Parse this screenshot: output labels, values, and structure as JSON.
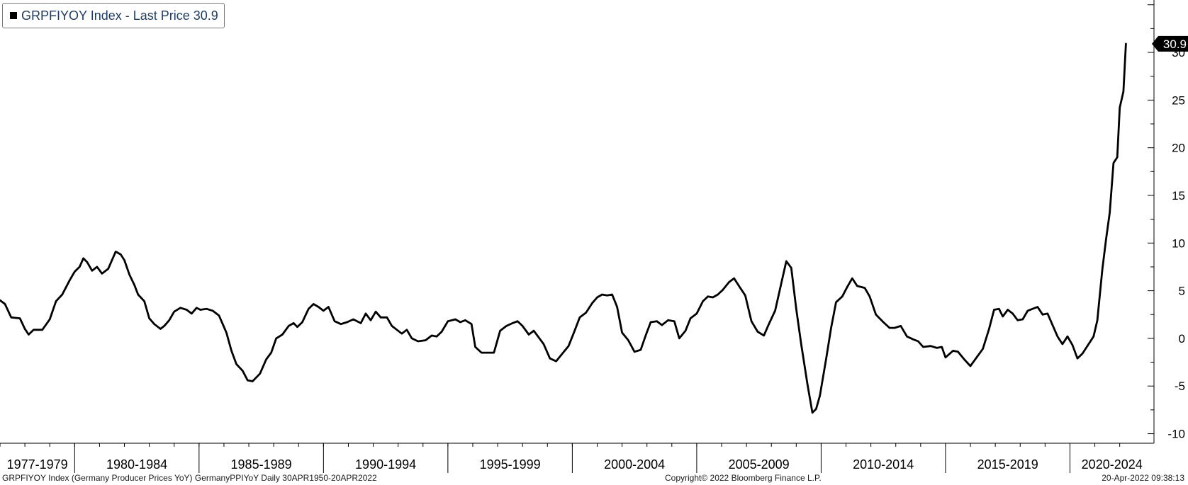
{
  "legend": {
    "label": "GRPFIYOY Index - Last Price 30.9"
  },
  "footer": {
    "left": "GRPFIYOY Index (Germany Producer Prices YoY) GermanyPPIYoY  Daily 30APR1950-20APR2022",
    "center": "Copyright© 2022 Bloomberg Finance L.P.",
    "right": "20-Apr-2022 09:38:13"
  },
  "colors": {
    "line": "#000000",
    "axis": "#000000",
    "background": "#ffffff",
    "legend_text": "#1f3a5f"
  },
  "chart_data": {
    "type": "line",
    "title": "",
    "xlabel": "",
    "ylabel": "",
    "ylim": [
      -11,
      35.5
    ],
    "xlim": [
      1977.0,
      2022.75
    ],
    "y_ticks": [
      30,
      25,
      20,
      15,
      10,
      5,
      0,
      -5,
      -10
    ],
    "x_period_labels": [
      "1977-1979",
      "1980-1984",
      "1985-1989",
      "1990-1994",
      "1995-1999",
      "2000-2004",
      "2005-2009",
      "2010-2014",
      "2015-2019",
      "2020-2024"
    ],
    "x_period_bounds": [
      1977,
      1980,
      1985,
      1990,
      1995,
      2000,
      2005,
      2010,
      2015,
      2020,
      2025
    ],
    "last_value_label": "30.9",
    "last_value": 30.9,
    "grid": false,
    "legend_position": "top-left",
    "series": [
      {
        "name": "GRPFIYOY Index",
        "points": [
          [
            1977.0,
            4.0
          ],
          [
            1977.2,
            3.6
          ],
          [
            1977.45,
            2.2
          ],
          [
            1977.8,
            2.1
          ],
          [
            1978.0,
            1.0
          ],
          [
            1978.15,
            0.4
          ],
          [
            1978.35,
            0.9
          ],
          [
            1978.7,
            0.9
          ],
          [
            1979.0,
            2.0
          ],
          [
            1979.25,
            3.9
          ],
          [
            1979.5,
            4.6
          ],
          [
            1979.8,
            6.1
          ],
          [
            1980.0,
            7.0
          ],
          [
            1980.2,
            7.5
          ],
          [
            1980.35,
            8.4
          ],
          [
            1980.5,
            8.0
          ],
          [
            1980.7,
            7.1
          ],
          [
            1980.9,
            7.5
          ],
          [
            1981.1,
            6.8
          ],
          [
            1981.35,
            7.3
          ],
          [
            1981.65,
            9.1
          ],
          [
            1981.85,
            8.8
          ],
          [
            1982.0,
            8.2
          ],
          [
            1982.2,
            6.7
          ],
          [
            1982.4,
            5.6
          ],
          [
            1982.55,
            4.6
          ],
          [
            1982.8,
            3.9
          ],
          [
            1983.0,
            2.1
          ],
          [
            1983.2,
            1.5
          ],
          [
            1983.45,
            1.0
          ],
          [
            1983.6,
            1.3
          ],
          [
            1983.8,
            1.9
          ],
          [
            1984.0,
            2.8
          ],
          [
            1984.25,
            3.2
          ],
          [
            1984.5,
            3.0
          ],
          [
            1984.7,
            2.6
          ],
          [
            1984.9,
            3.2
          ],
          [
            1985.05,
            3.0
          ],
          [
            1985.3,
            3.1
          ],
          [
            1985.55,
            2.9
          ],
          [
            1985.8,
            2.4
          ],
          [
            1985.95,
            1.5
          ],
          [
            1986.1,
            0.6
          ],
          [
            1986.3,
            -1.3
          ],
          [
            1986.5,
            -2.7
          ],
          [
            1986.75,
            -3.4
          ],
          [
            1986.95,
            -4.4
          ],
          [
            1987.15,
            -4.5
          ],
          [
            1987.45,
            -3.7
          ],
          [
            1987.7,
            -2.2
          ],
          [
            1987.9,
            -1.5
          ],
          [
            1988.1,
            0.0
          ],
          [
            1988.35,
            0.4
          ],
          [
            1988.6,
            1.3
          ],
          [
            1988.8,
            1.6
          ],
          [
            1988.95,
            1.2
          ],
          [
            1989.15,
            1.7
          ],
          [
            1989.4,
            3.1
          ],
          [
            1989.6,
            3.6
          ],
          [
            1989.8,
            3.3
          ],
          [
            1990.0,
            2.9
          ],
          [
            1990.2,
            3.3
          ],
          [
            1990.45,
            1.8
          ],
          [
            1990.7,
            1.5
          ],
          [
            1990.95,
            1.7
          ],
          [
            1991.2,
            2.0
          ],
          [
            1991.5,
            1.6
          ],
          [
            1991.7,
            2.6
          ],
          [
            1991.9,
            1.9
          ],
          [
            1992.1,
            2.8
          ],
          [
            1992.3,
            2.2
          ],
          [
            1992.55,
            2.2
          ],
          [
            1992.75,
            1.3
          ],
          [
            1992.95,
            0.9
          ],
          [
            1993.15,
            0.5
          ],
          [
            1993.35,
            0.9
          ],
          [
            1993.55,
            0.0
          ],
          [
            1993.8,
            -0.3
          ],
          [
            1994.1,
            -0.2
          ],
          [
            1994.35,
            0.3
          ],
          [
            1994.55,
            0.2
          ],
          [
            1994.75,
            0.7
          ],
          [
            1995.0,
            1.8
          ],
          [
            1995.3,
            2.0
          ],
          [
            1995.5,
            1.7
          ],
          [
            1995.7,
            1.9
          ],
          [
            1995.95,
            1.5
          ],
          [
            1996.1,
            -0.9
          ],
          [
            1996.35,
            -1.5
          ],
          [
            1996.6,
            -1.5
          ],
          [
            1996.85,
            -1.5
          ],
          [
            1997.1,
            0.8
          ],
          [
            1997.35,
            1.3
          ],
          [
            1997.6,
            1.6
          ],
          [
            1997.8,
            1.8
          ],
          [
            1998.0,
            1.3
          ],
          [
            1998.25,
            0.4
          ],
          [
            1998.45,
            0.8
          ],
          [
            1998.65,
            0.1
          ],
          [
            1998.85,
            -0.6
          ],
          [
            1999.1,
            -2.1
          ],
          [
            1999.35,
            -2.4
          ],
          [
            1999.6,
            -1.6
          ],
          [
            1999.85,
            -0.8
          ],
          [
            2000.05,
            0.5
          ],
          [
            2000.3,
            2.2
          ],
          [
            2000.55,
            2.7
          ],
          [
            2000.8,
            3.7
          ],
          [
            2001.0,
            4.3
          ],
          [
            2001.2,
            4.6
          ],
          [
            2001.4,
            4.5
          ],
          [
            2001.6,
            4.6
          ],
          [
            2001.8,
            3.3
          ],
          [
            2002.0,
            0.6
          ],
          [
            2002.25,
            -0.2
          ],
          [
            2002.5,
            -1.4
          ],
          [
            2002.75,
            -1.2
          ],
          [
            2002.95,
            0.3
          ],
          [
            2003.15,
            1.7
          ],
          [
            2003.4,
            1.8
          ],
          [
            2003.6,
            1.4
          ],
          [
            2003.85,
            1.9
          ],
          [
            2004.1,
            1.8
          ],
          [
            2004.3,
            0.0
          ],
          [
            2004.55,
            0.8
          ],
          [
            2004.75,
            2.1
          ],
          [
            2005.0,
            2.6
          ],
          [
            2005.25,
            3.9
          ],
          [
            2005.45,
            4.4
          ],
          [
            2005.65,
            4.3
          ],
          [
            2005.85,
            4.6
          ],
          [
            2006.05,
            5.1
          ],
          [
            2006.3,
            5.9
          ],
          [
            2006.5,
            6.3
          ],
          [
            2006.75,
            5.3
          ],
          [
            2006.95,
            4.5
          ],
          [
            2007.2,
            1.8
          ],
          [
            2007.45,
            0.7
          ],
          [
            2007.7,
            0.3
          ],
          [
            2007.9,
            1.5
          ],
          [
            2008.15,
            2.9
          ],
          [
            2008.4,
            5.8
          ],
          [
            2008.6,
            8.1
          ],
          [
            2008.8,
            7.4
          ],
          [
            2009.0,
            3.1
          ],
          [
            2009.2,
            -0.6
          ],
          [
            2009.45,
            -4.8
          ],
          [
            2009.65,
            -7.8
          ],
          [
            2009.8,
            -7.4
          ],
          [
            2009.95,
            -6.0
          ],
          [
            2010.2,
            -2.2
          ],
          [
            2010.4,
            1.1
          ],
          [
            2010.6,
            3.8
          ],
          [
            2010.85,
            4.4
          ],
          [
            2011.05,
            5.4
          ],
          [
            2011.25,
            6.3
          ],
          [
            2011.45,
            5.5
          ],
          [
            2011.75,
            5.3
          ],
          [
            2011.95,
            4.4
          ],
          [
            2012.2,
            2.5
          ],
          [
            2012.5,
            1.7
          ],
          [
            2012.75,
            1.1
          ],
          [
            2012.95,
            1.1
          ],
          [
            2013.2,
            1.3
          ],
          [
            2013.45,
            0.2
          ],
          [
            2013.7,
            -0.1
          ],
          [
            2013.9,
            -0.3
          ],
          [
            2014.1,
            -0.9
          ],
          [
            2014.4,
            -0.8
          ],
          [
            2014.65,
            -1.0
          ],
          [
            2014.85,
            -0.9
          ],
          [
            2015.0,
            -2.0
          ],
          [
            2015.3,
            -1.3
          ],
          [
            2015.5,
            -1.4
          ],
          [
            2015.75,
            -2.2
          ],
          [
            2016.0,
            -2.9
          ],
          [
            2016.25,
            -2.0
          ],
          [
            2016.5,
            -1.1
          ],
          [
            2016.75,
            1.0
          ],
          [
            2016.95,
            3.0
          ],
          [
            2017.15,
            3.1
          ],
          [
            2017.3,
            2.3
          ],
          [
            2017.5,
            3.0
          ],
          [
            2017.7,
            2.6
          ],
          [
            2017.9,
            1.9
          ],
          [
            2018.1,
            2.0
          ],
          [
            2018.3,
            2.9
          ],
          [
            2018.5,
            3.1
          ],
          [
            2018.7,
            3.3
          ],
          [
            2018.9,
            2.5
          ],
          [
            2019.1,
            2.6
          ],
          [
            2019.3,
            1.4
          ],
          [
            2019.5,
            0.2
          ],
          [
            2019.7,
            -0.6
          ],
          [
            2019.9,
            0.2
          ],
          [
            2020.1,
            -0.7
          ],
          [
            2020.3,
            -2.1
          ],
          [
            2020.5,
            -1.6
          ],
          [
            2020.7,
            -0.8
          ],
          [
            2020.95,
            0.2
          ],
          [
            2021.1,
            1.9
          ],
          [
            2021.3,
            7.2
          ],
          [
            2021.45,
            10.4
          ],
          [
            2021.6,
            13.2
          ],
          [
            2021.75,
            18.4
          ],
          [
            2021.9,
            19.0
          ],
          [
            2022.0,
            24.2
          ],
          [
            2022.15,
            25.9
          ],
          [
            2022.25,
            30.9
          ]
        ]
      }
    ]
  }
}
